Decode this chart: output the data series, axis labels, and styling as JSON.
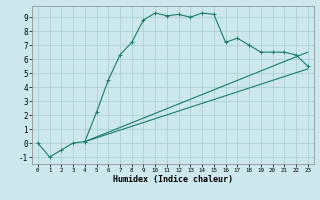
{
  "xlabel": "Humidex (Indice chaleur)",
  "bg_color": "#cde8ec",
  "grid_color": "#aacfd4",
  "line_color": "#1a7a70",
  "xlim": [
    -0.5,
    23.5
  ],
  "ylim": [
    -1.5,
    9.8
  ],
  "xticks": [
    0,
    1,
    2,
    3,
    4,
    5,
    6,
    7,
    8,
    9,
    10,
    11,
    12,
    13,
    14,
    15,
    16,
    17,
    18,
    19,
    20,
    21,
    22,
    23
  ],
  "yticks": [
    -1,
    0,
    1,
    2,
    3,
    4,
    5,
    6,
    7,
    8,
    9
  ],
  "curve1_x": [
    0,
    1,
    2,
    3,
    4,
    5,
    6,
    7,
    8,
    9,
    10,
    11,
    12,
    13,
    14,
    15,
    16,
    17,
    18,
    19,
    20,
    21,
    22,
    23
  ],
  "curve1_y": [
    0,
    -1,
    -0.5,
    0,
    0.1,
    2.2,
    4.5,
    6.3,
    7.2,
    8.8,
    9.3,
    9.1,
    9.2,
    9.0,
    9.3,
    9.2,
    7.2,
    7.5,
    7.0,
    6.5,
    6.5,
    6.5,
    6.3,
    5.5
  ],
  "curve2_x": [
    4,
    23
  ],
  "curve2_y": [
    0.1,
    6.5
  ],
  "curve3_x": [
    4,
    23
  ],
  "curve3_y": [
    0.1,
    5.3
  ]
}
